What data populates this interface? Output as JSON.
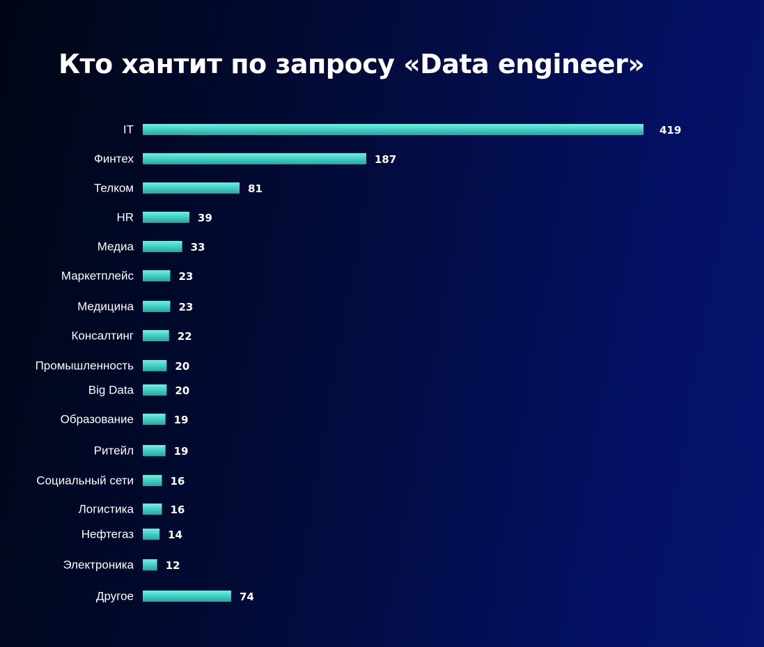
{
  "title": "Кто хантит по запросу «Data engineer»",
  "colors": {
    "bar_top": "#6ff2e2",
    "bar_bottom": "#1fa9a3",
    "text": "#ffffff",
    "background": "#020c3c"
  },
  "chart_data": {
    "type": "bar",
    "orientation": "horizontal",
    "title": "Кто хантит по запросу «Data engineer»",
    "categories": [
      "IT",
      "Финтех",
      "Телком",
      "HR",
      "Медиа",
      "Маркетплейс",
      "Медицина",
      "Консалтинг",
      "Промышленность",
      "Big Data",
      "Образование",
      "Ритейл",
      "Социальный сети",
      "Логистика",
      "Нефтегаз",
      "Электроника",
      "Другое"
    ],
    "values": [
      419,
      187,
      81,
      39,
      33,
      23,
      23,
      22,
      20,
      20,
      19,
      19,
      16,
      16,
      14,
      12,
      74
    ],
    "xlabel": "",
    "ylabel": "",
    "grid": false,
    "legend": "none"
  }
}
